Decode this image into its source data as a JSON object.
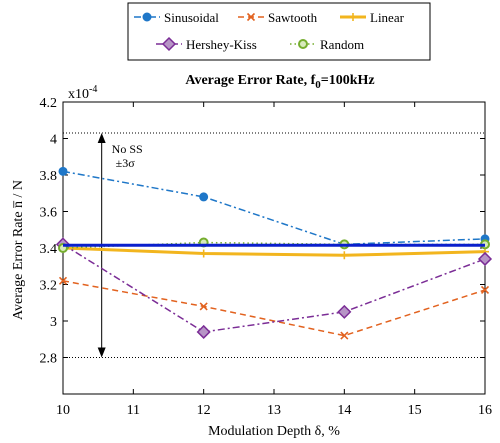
{
  "chart_data": {
    "type": "line",
    "title": "Average Error Rate, f",
    "title_sub": "0",
    "title_suffix": "=100kHz",
    "xlabel": "Modulation Depth δ, %",
    "ylabel": "Average Error Rate n̅ / N",
    "y_multiplier": "x10",
    "y_multiplier_exp": "-4",
    "xlim": [
      10,
      16
    ],
    "ylim": [
      2.6,
      4.2
    ],
    "x_ticks": [
      "10",
      "11",
      "12",
      "13",
      "14",
      "15",
      "16"
    ],
    "y_ticks": [
      "2.8",
      "3",
      "3.2",
      "3.4",
      "3.6",
      "3.8",
      "4",
      "4.2"
    ],
    "grid": false,
    "legend_position": "top",
    "x": [
      10,
      12,
      14,
      16
    ],
    "series": [
      {
        "name": "Sinusoidal",
        "values": [
          3.82,
          3.68,
          3.42,
          3.45
        ],
        "color": "#1f77c8",
        "dash": "dashdot",
        "marker": "circle"
      },
      {
        "name": "Sawtooth",
        "values": [
          3.22,
          3.08,
          2.92,
          3.17
        ],
        "color": "#e2621f",
        "dash": "dash",
        "marker": "x"
      },
      {
        "name": "Linear",
        "values": [
          3.4,
          3.37,
          3.36,
          3.38
        ],
        "color": "#f2b51e",
        "dash": "solid",
        "marker": "plus"
      },
      {
        "name": "Hershey-Kiss",
        "values": [
          3.42,
          2.94,
          3.05,
          3.34
        ],
        "color": "#7b2d96",
        "dash": "dashdot",
        "marker": "diamond"
      },
      {
        "name": "Random",
        "values": [
          3.4,
          3.43,
          3.42,
          3.42
        ],
        "color": "#75ad2e",
        "dash": "dot",
        "marker": "circle"
      }
    ],
    "reference": {
      "label_line1": "No SS",
      "label_line2": "±3σ",
      "mean": 3.415,
      "upper": 4.03,
      "lower": 2.8,
      "color": "#0a1fcc"
    }
  }
}
